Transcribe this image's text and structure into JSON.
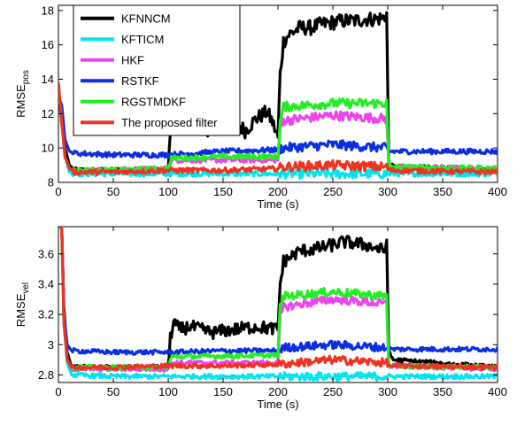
{
  "chart_data": [
    {
      "type": "line",
      "xlabel": "Time (s)",
      "ylabel": {
        "main": "RMSE",
        "sub": "pos"
      },
      "xlim": [
        0,
        400
      ],
      "ylim": [
        8,
        18.3
      ],
      "xticks": [
        0,
        50,
        100,
        150,
        200,
        250,
        300,
        350,
        400
      ],
      "yticks": [
        8,
        10,
        12,
        14,
        16,
        18
      ],
      "grid": false,
      "legend": {
        "position": "top-left"
      },
      "series": [
        {
          "name": "KFNNCM",
          "color": "#000000",
          "points": [
            [
              0,
              13.5
            ],
            [
              3,
              11.4
            ],
            [
              6,
              10.0
            ],
            [
              10,
              9.0
            ],
            [
              15,
              8.7
            ],
            [
              50,
              8.7
            ],
            [
              100,
              8.7
            ],
            [
              102,
              11.0
            ],
            [
              105,
              12.2
            ],
            [
              110,
              11.2
            ],
            [
              120,
              11.9
            ],
            [
              130,
              11.0
            ],
            [
              140,
              11.2
            ],
            [
              150,
              11.1
            ],
            [
              160,
              11.6
            ],
            [
              170,
              11.0
            ],
            [
              180,
              11.7
            ],
            [
              190,
              12.1
            ],
            [
              195,
              11.5
            ],
            [
              200,
              10.6
            ],
            [
              202,
              14.3
            ],
            [
              205,
              16.2
            ],
            [
              210,
              16.6
            ],
            [
              220,
              17.0
            ],
            [
              230,
              17.0
            ],
            [
              240,
              17.2
            ],
            [
              250,
              17.3
            ],
            [
              260,
              17.4
            ],
            [
              270,
              17.4
            ],
            [
              280,
              17.5
            ],
            [
              290,
              17.5
            ],
            [
              297,
              17.6
            ],
            [
              299,
              17.8
            ],
            [
              301,
              9.0
            ],
            [
              305,
              8.9
            ],
            [
              400,
              8.7
            ]
          ]
        },
        {
          "name": "KFTICM",
          "color": "#00e5ee",
          "points": [
            [
              0,
              13.8
            ],
            [
              3,
              11.5
            ],
            [
              6,
              9.5
            ],
            [
              10,
              8.6
            ],
            [
              15,
              8.5
            ],
            [
              400,
              8.5
            ]
          ]
        },
        {
          "name": "HKF",
          "color": "#ee44ee",
          "points": [
            [
              0,
              13.8
            ],
            [
              3,
              11.5
            ],
            [
              6,
              9.5
            ],
            [
              10,
              8.8
            ],
            [
              15,
              8.7
            ],
            [
              50,
              8.7
            ],
            [
              100,
              8.8
            ],
            [
              103,
              9.3
            ],
            [
              150,
              9.3
            ],
            [
              200,
              9.3
            ],
            [
              202,
              11.0
            ],
            [
              205,
              11.6
            ],
            [
              250,
              11.9
            ],
            [
              299,
              11.7
            ],
            [
              301,
              8.9
            ],
            [
              400,
              8.8
            ]
          ]
        },
        {
          "name": "RSTKF",
          "color": "#0b2ee0",
          "points": [
            [
              0,
              13.0
            ],
            [
              3,
              12.5
            ],
            [
              6,
              10.5
            ],
            [
              10,
              9.8
            ],
            [
              15,
              9.7
            ],
            [
              50,
              9.6
            ],
            [
              100,
              9.6
            ],
            [
              150,
              9.8
            ],
            [
              200,
              9.9
            ],
            [
              205,
              10.0
            ],
            [
              250,
              10.2
            ],
            [
              299,
              10.0
            ],
            [
              301,
              9.8
            ],
            [
              400,
              9.8
            ]
          ]
        },
        {
          "name": "RGSTMDKF",
          "color": "#22ee22",
          "points": [
            [
              0,
              13.8
            ],
            [
              3,
              11.5
            ],
            [
              6,
              9.5
            ],
            [
              10,
              8.8
            ],
            [
              15,
              8.7
            ],
            [
              50,
              8.7
            ],
            [
              100,
              8.8
            ],
            [
              103,
              9.4
            ],
            [
              150,
              9.5
            ],
            [
              200,
              9.5
            ],
            [
              202,
              11.5
            ],
            [
              205,
              12.4
            ],
            [
              250,
              12.6
            ],
            [
              299,
              12.6
            ],
            [
              301,
              8.9
            ],
            [
              400,
              8.8
            ]
          ]
        },
        {
          "name": "The proposed filter",
          "color": "#ee3322",
          "points": [
            [
              0,
              13.8
            ],
            [
              3,
              11.5
            ],
            [
              6,
              9.5
            ],
            [
              10,
              8.8
            ],
            [
              15,
              8.6
            ],
            [
              50,
              8.6
            ],
            [
              100,
              8.7
            ],
            [
              150,
              8.7
            ],
            [
              200,
              8.8
            ],
            [
              205,
              8.9
            ],
            [
              250,
              9.0
            ],
            [
              299,
              8.9
            ],
            [
              301,
              8.7
            ],
            [
              400,
              8.6
            ]
          ]
        }
      ]
    },
    {
      "type": "line",
      "xlabel": "Time (s)",
      "ylabel": {
        "main": "RMSE",
        "sub": "vel"
      },
      "xlim": [
        0,
        400
      ],
      "ylim": [
        2.75,
        3.78
      ],
      "xticks": [
        0,
        50,
        100,
        150,
        200,
        250,
        300,
        350,
        400
      ],
      "yticks": [
        2.8,
        3,
        3.2,
        3.4,
        3.6
      ],
      "yticklabels": [
        "2.8",
        "3",
        "3.2",
        "3.4",
        "3.6"
      ],
      "grid": false,
      "series": [
        {
          "name": "KFNNCM",
          "color": "#000000",
          "points": [
            [
              0,
              3.78
            ],
            [
              3,
              3.78
            ],
            [
              5,
              3.25
            ],
            [
              8,
              2.95
            ],
            [
              12,
              2.85
            ],
            [
              50,
              2.85
            ],
            [
              100,
              2.85
            ],
            [
              102,
              3.05
            ],
            [
              105,
              3.15
            ],
            [
              110,
              3.1
            ],
            [
              120,
              3.12
            ],
            [
              140,
              3.08
            ],
            [
              160,
              3.1
            ],
            [
              180,
              3.12
            ],
            [
              200,
              3.1
            ],
            [
              202,
              3.4
            ],
            [
              205,
              3.55
            ],
            [
              220,
              3.62
            ],
            [
              240,
              3.64
            ],
            [
              260,
              3.68
            ],
            [
              280,
              3.66
            ],
            [
              297,
              3.62
            ],
            [
              299,
              3.68
            ],
            [
              301,
              2.95
            ],
            [
              305,
              2.9
            ],
            [
              400,
              2.85
            ]
          ]
        },
        {
          "name": "KFTICM",
          "color": "#00e5ee",
          "points": [
            [
              0,
              3.78
            ],
            [
              3,
              3.78
            ],
            [
              5,
              3.15
            ],
            [
              8,
              2.88
            ],
            [
              12,
              2.8
            ],
            [
              50,
              2.79
            ],
            [
              400,
              2.79
            ]
          ]
        },
        {
          "name": "HKF",
          "color": "#ee44ee",
          "points": [
            [
              0,
              3.78
            ],
            [
              3,
              3.78
            ],
            [
              5,
              3.15
            ],
            [
              8,
              2.9
            ],
            [
              12,
              2.84
            ],
            [
              50,
              2.84
            ],
            [
              100,
              2.84
            ],
            [
              103,
              2.88
            ],
            [
              200,
              2.88
            ],
            [
              202,
              3.18
            ],
            [
              205,
              3.25
            ],
            [
              250,
              3.3
            ],
            [
              299,
              3.27
            ],
            [
              301,
              2.86
            ],
            [
              400,
              2.84
            ]
          ]
        },
        {
          "name": "RSTKF",
          "color": "#0b2ee0",
          "points": [
            [
              0,
              3.78
            ],
            [
              3,
              3.78
            ],
            [
              5,
              3.2
            ],
            [
              8,
              3.0
            ],
            [
              12,
              2.96
            ],
            [
              50,
              2.95
            ],
            [
              100,
              2.95
            ],
            [
              150,
              2.96
            ],
            [
              200,
              2.96
            ],
            [
              205,
              2.98
            ],
            [
              250,
              3.0
            ],
            [
              299,
              2.98
            ],
            [
              301,
              2.97
            ],
            [
              400,
              2.97
            ]
          ]
        },
        {
          "name": "RGSTMDKF",
          "color": "#22ee22",
          "points": [
            [
              0,
              3.78
            ],
            [
              3,
              3.78
            ],
            [
              5,
              3.15
            ],
            [
              8,
              2.9
            ],
            [
              12,
              2.85
            ],
            [
              50,
              2.85
            ],
            [
              100,
              2.85
            ],
            [
              103,
              2.92
            ],
            [
              200,
              2.93
            ],
            [
              202,
              3.25
            ],
            [
              205,
              3.32
            ],
            [
              250,
              3.35
            ],
            [
              299,
              3.32
            ],
            [
              301,
              2.86
            ],
            [
              400,
              2.85
            ]
          ]
        },
        {
          "name": "The proposed filter",
          "color": "#ee3322",
          "points": [
            [
              0,
              3.78
            ],
            [
              3,
              3.78
            ],
            [
              5,
              3.15
            ],
            [
              8,
              2.9
            ],
            [
              12,
              2.85
            ],
            [
              50,
              2.85
            ],
            [
              100,
              2.86
            ],
            [
              150,
              2.86
            ],
            [
              200,
              2.87
            ],
            [
              250,
              2.9
            ],
            [
              299,
              2.88
            ],
            [
              301,
              2.86
            ],
            [
              400,
              2.85
            ]
          ]
        }
      ]
    }
  ]
}
